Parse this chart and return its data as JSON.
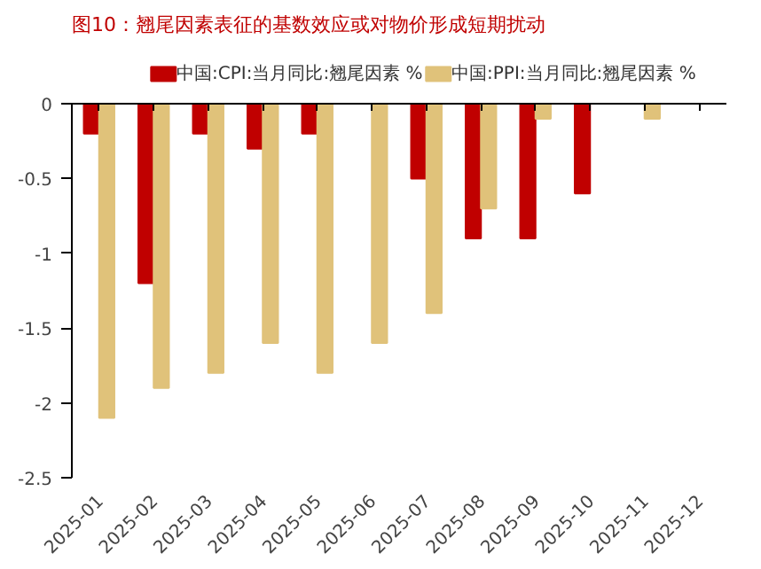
{
  "chart_data": {
    "type": "bar",
    "title": "图10：翘尾因素表征的基数效应或对物价形成短期扰动",
    "categories": [
      "2025-01",
      "2025-02",
      "2025-03",
      "2025-04",
      "2025-05",
      "2025-06",
      "2025-07",
      "2025-08",
      "2025-09",
      "2025-10",
      "2025-11",
      "2025-12"
    ],
    "series": [
      {
        "name": "中国:CPI:当月同比:翘尾因素 %",
        "color": "#c00000",
        "values": [
          -0.2,
          -1.2,
          -0.2,
          -0.3,
          -0.2,
          null,
          -0.5,
          -0.9,
          -0.9,
          -0.6,
          null,
          null
        ]
      },
      {
        "name": "中国:PPI:当月同比:翘尾因素 %",
        "color": "#e0c27a",
        "values": [
          -2.1,
          -1.9,
          -1.8,
          -1.6,
          -1.8,
          -1.6,
          -1.4,
          -0.7,
          -0.1,
          null,
          -0.1,
          null
        ]
      }
    ],
    "ylim": [
      -2.5,
      0
    ],
    "yticks": [
      -2.5,
      -2,
      {
        "value": -1.5,
        "label": "-1.5"
      },
      -1,
      {
        "value": -0.5,
        "label": "-0.5"
      },
      0
    ],
    "grid": false,
    "legend": "top"
  }
}
